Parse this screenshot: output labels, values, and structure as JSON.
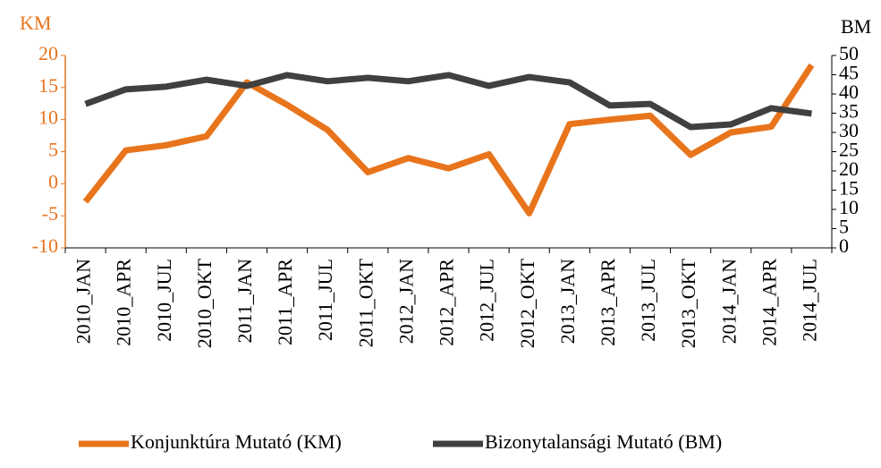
{
  "chart_data": {
    "type": "line",
    "y_axis_title": "KM",
    "y2_axis_title": "BM",
    "categories": [
      "2010_JAN",
      "2010_APR",
      "2010_JUL",
      "2010_OKT",
      "2011_JAN",
      "2011_APR",
      "2011_JUL",
      "2011_OKT",
      "2012_JAN",
      "2012_APR",
      "2012_JUL",
      "2012_OKT",
      "2013_JAN",
      "2013_APR",
      "2013_JUL",
      "2013_OKT",
      "2014_JAN",
      "2014_APR",
      "2014_JUL"
    ],
    "series": [
      {
        "name": "Konjunktúra Mutató (KM)",
        "color": "#e8741c",
        "axis": "y",
        "values": [
          -2.8,
          5.2,
          6.0,
          7.4,
          15.8,
          12.3,
          8.4,
          1.8,
          4.0,
          2.4,
          4.6,
          -4.6,
          9.3,
          10.0,
          10.6,
          4.5,
          8.0,
          8.9,
          18.5
        ]
      },
      {
        "name": "Bizonytalansági Mutató (BM)",
        "color": "#404040",
        "axis": "y2",
        "values": [
          37.4,
          41.2,
          41.9,
          43.7,
          42.1,
          44.9,
          43.3,
          44.2,
          43.3,
          44.9,
          42.1,
          44.4,
          43.0,
          37.0,
          37.4,
          31.4,
          32.1,
          36.3,
          34.9
        ]
      }
    ],
    "ylim": [
      -10,
      20
    ],
    "yticks": [
      -10,
      -5,
      0,
      5,
      10,
      15,
      20
    ],
    "y_axis_color": "#e8741c",
    "y2lim": [
      0,
      50
    ],
    "y2ticks": [
      0,
      5,
      10,
      15,
      20,
      25,
      30,
      35,
      40,
      45,
      50
    ],
    "grid": false,
    "legend": "bottom"
  }
}
